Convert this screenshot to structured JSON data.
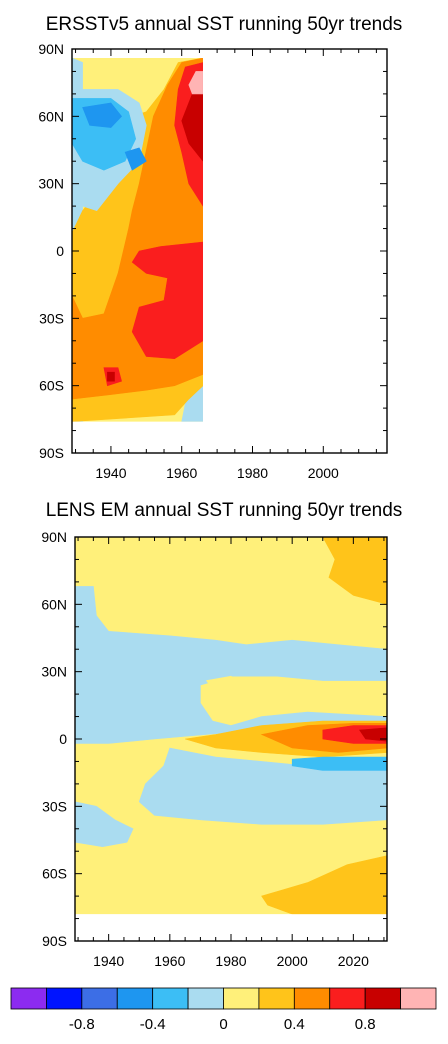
{
  "chart_data": [
    {
      "type": "heatmap",
      "title": "ERSSTv5 annual SST running 50yr trends",
      "xlabel": "",
      "ylabel": "",
      "xlim": [
        1929,
        2018
      ],
      "ylim": [
        -90,
        90
      ],
      "x_ticks": [
        1940,
        1960,
        1980,
        2000
      ],
      "x_tick_labels": [
        "1940",
        "1960",
        "1980",
        "2000"
      ],
      "y_ticks": [
        90,
        60,
        30,
        0,
        -30,
        -60,
        -90
      ],
      "y_tick_labels": [
        "90N",
        "60N",
        "30N",
        "0",
        "30S",
        "60S",
        "90S"
      ],
      "data_extent": {
        "x": [
          1929,
          1966
        ],
        "y": [
          -76,
          86
        ]
      },
      "regions": [
        {
          "color": "#fff07a",
          "points": [
            [
              1929,
              86
            ],
            [
              1966,
              86
            ],
            [
              1966,
              -76
            ],
            [
              1929,
              -76
            ]
          ]
        },
        {
          "color": "#aadcf0",
          "points": [
            [
              1929,
              86
            ],
            [
              1932,
              84
            ],
            [
              1932,
              -76
            ],
            [
              1929,
              -76
            ]
          ]
        },
        {
          "color": "#aadcf0",
          "points": [
            [
              1963,
              -60
            ],
            [
              1966,
              -60
            ],
            [
              1966,
              -76
            ],
            [
              1960,
              -76
            ],
            [
              1961,
              -68
            ]
          ]
        },
        {
          "color": "#ffc41a",
          "points": [
            [
              1940,
              58
            ],
            [
              1946,
              60
            ],
            [
              1950,
              62
            ],
            [
              1955,
              72
            ],
            [
              1959,
              84
            ],
            [
              1966,
              86
            ],
            [
              1966,
              -60
            ],
            [
              1962,
              -66
            ],
            [
              1958,
              -73
            ],
            [
              1929,
              -76
            ],
            [
              1929,
              8
            ],
            [
              1932,
              18
            ],
            [
              1936,
              26
            ],
            [
              1940,
              30
            ],
            [
              1942,
              40
            ]
          ]
        },
        {
          "color": "#ff8c00",
          "points": [
            [
              1952,
              60
            ],
            [
              1956,
              74
            ],
            [
              1960,
              84
            ],
            [
              1966,
              86
            ],
            [
              1966,
              -55
            ],
            [
              1958,
              -60
            ],
            [
              1950,
              -62
            ],
            [
              1940,
              -64
            ],
            [
              1929,
              -66
            ],
            [
              1929,
              -20
            ],
            [
              1932,
              -30
            ],
            [
              1938,
              -28
            ],
            [
              1942,
              -10
            ],
            [
              1945,
              10
            ],
            [
              1946,
              18
            ],
            [
              1948,
              30
            ],
            [
              1950,
              45
            ]
          ]
        },
        {
          "color": "#fa1e1e",
          "points": [
            [
              1959,
              72
            ],
            [
              1961,
              82
            ],
            [
              1966,
              84
            ],
            [
              1966,
              20
            ],
            [
              1962,
              30
            ],
            [
              1960,
              44
            ],
            [
              1958,
              56
            ]
          ]
        },
        {
          "color": "#fa1e1e",
          "points": [
            [
              1948,
              0
            ],
            [
              1954,
              2
            ],
            [
              1960,
              3
            ],
            [
              1966,
              4
            ],
            [
              1966,
              -40
            ],
            [
              1958,
              -48
            ],
            [
              1950,
              -47
            ],
            [
              1946,
              -36
            ],
            [
              1948,
              -25
            ],
            [
              1955,
              -22
            ],
            [
              1956,
              -12
            ],
            [
              1950,
              -10
            ],
            [
              1946,
              -5
            ]
          ]
        },
        {
          "color": "#c80000",
          "points": [
            [
              1960,
              58
            ],
            [
              1963,
              70
            ],
            [
              1966,
              76
            ],
            [
              1966,
              40
            ],
            [
              1962,
              48
            ]
          ]
        },
        {
          "color": "#ffb4b4",
          "points": [
            [
              1962,
              74
            ],
            [
              1964,
              80
            ],
            [
              1966,
              80
            ],
            [
              1966,
              70
            ],
            [
              1963,
              70
            ]
          ]
        },
        {
          "color": "#aadcf0",
          "points": [
            [
              1929,
              72
            ],
            [
              1942,
              72
            ],
            [
              1948,
              66
            ],
            [
              1950,
              56
            ],
            [
              1948,
              40
            ],
            [
              1942,
              30
            ],
            [
              1936,
              18
            ],
            [
              1932,
              20
            ],
            [
              1929,
              28
            ]
          ]
        },
        {
          "color": "#3cbef5",
          "points": [
            [
              1929,
              68
            ],
            [
              1940,
              68
            ],
            [
              1945,
              62
            ],
            [
              1947,
              50
            ],
            [
              1944,
              40
            ],
            [
              1938,
              36
            ],
            [
              1932,
              40
            ],
            [
              1929,
              48
            ]
          ]
        },
        {
          "color": "#1e96f0",
          "points": [
            [
              1932,
              64
            ],
            [
              1940,
              66
            ],
            [
              1943,
              60
            ],
            [
              1940,
              55
            ],
            [
              1934,
              56
            ]
          ]
        },
        {
          "color": "#1e96f0",
          "points": [
            [
              1944,
              44
            ],
            [
              1948,
              46
            ],
            [
              1950,
              40
            ],
            [
              1946,
              36
            ]
          ]
        },
        {
          "color": "#fa1e1e",
          "points": [
            [
              1938,
              -52
            ],
            [
              1942,
              -52
            ],
            [
              1943,
              -58
            ],
            [
              1939,
              -60
            ]
          ]
        },
        {
          "color": "#c80000",
          "points": [
            [
              1939,
              -54
            ],
            [
              1941,
              -54
            ],
            [
              1941,
              -58
            ],
            [
              1939,
              -58
            ]
          ]
        }
      ]
    },
    {
      "type": "heatmap",
      "title": "LENS EM annual SST running 50yr trends",
      "xlabel": "",
      "ylabel": "",
      "xlim": [
        1929,
        2031
      ],
      "ylim": [
        -90,
        90
      ],
      "x_ticks": [
        1940,
        1960,
        1980,
        2000,
        2020
      ],
      "x_tick_labels": [
        "1940",
        "1960",
        "1980",
        "2000",
        "2020"
      ],
      "y_ticks": [
        90,
        60,
        30,
        0,
        -30,
        -60,
        -90
      ],
      "y_tick_labels": [
        "90N",
        "60N",
        "30N",
        "0",
        "30S",
        "60S",
        "90S"
      ],
      "data_extent": {
        "x": [
          1929,
          2031
        ],
        "y": [
          -78,
          90
        ]
      },
      "regions": [
        {
          "color": "#fff07a",
          "points": [
            [
              1929,
              90
            ],
            [
              2031,
              90
            ],
            [
              2031,
              -78
            ],
            [
              1929,
              -78
            ]
          ]
        },
        {
          "color": "#aadcf0",
          "points": [
            [
              1929,
              68
            ],
            [
              1935,
              68
            ],
            [
              1936,
              55
            ],
            [
              1940,
              48
            ],
            [
              1960,
              46
            ],
            [
              1975,
              44
            ],
            [
              1985,
              42
            ],
            [
              2000,
              44
            ],
            [
              2015,
              42
            ],
            [
              2031,
              40
            ],
            [
              2031,
              26
            ],
            [
              2010,
              26
            ],
            [
              1995,
              28
            ],
            [
              1980,
              28
            ],
            [
              1970,
              24
            ],
            [
              1970,
              16
            ],
            [
              1974,
              8
            ],
            [
              1980,
              6
            ],
            [
              1990,
              10
            ],
            [
              2005,
              12
            ],
            [
              2031,
              10
            ],
            [
              2031,
              8
            ],
            [
              2010,
              6
            ],
            [
              1990,
              4
            ],
            [
              1972,
              2
            ],
            [
              1955,
              0
            ],
            [
              1940,
              -2
            ],
            [
              1929,
              -2
            ]
          ]
        },
        {
          "color": "#fff07a",
          "points": [
            [
              1972,
              26
            ],
            [
              1980,
              28
            ],
            [
              1985,
              24
            ],
            [
              1982,
              20
            ],
            [
              1975,
              20
            ]
          ]
        },
        {
          "color": "#aadcf0",
          "points": [
            [
              1960,
              -4
            ],
            [
              1975,
              -8
            ],
            [
              1990,
              -10
            ],
            [
              2005,
              -12
            ],
            [
              2031,
              -12
            ],
            [
              2031,
              -36
            ],
            [
              2010,
              -38
            ],
            [
              1990,
              -38
            ],
            [
              1970,
              -36
            ],
            [
              1955,
              -34
            ],
            [
              1950,
              -28
            ],
            [
              1952,
              -20
            ],
            [
              1958,
              -12
            ]
          ]
        },
        {
          "color": "#aadcf0",
          "points": [
            [
              1929,
              -28
            ],
            [
              1936,
              -30
            ],
            [
              1942,
              -36
            ],
            [
              1948,
              -40
            ],
            [
              1946,
              -46
            ],
            [
              1938,
              -48
            ],
            [
              1929,
              -46
            ]
          ]
        },
        {
          "color": "#ffc41a",
          "points": [
            [
              1965,
              0
            ],
            [
              1975,
              2
            ],
            [
              1990,
              6
            ],
            [
              2010,
              8
            ],
            [
              2031,
              8
            ],
            [
              2031,
              -6
            ],
            [
              2010,
              -8
            ],
            [
              1990,
              -6
            ],
            [
              1975,
              -4
            ]
          ]
        },
        {
          "color": "#ff8c00",
          "points": [
            [
              1990,
              2
            ],
            [
              2005,
              6
            ],
            [
              2020,
              7
            ],
            [
              2031,
              7
            ],
            [
              2031,
              -4
            ],
            [
              2015,
              -6
            ],
            [
              2000,
              -4
            ]
          ]
        },
        {
          "color": "#fa1e1e",
          "points": [
            [
              2010,
              4
            ],
            [
              2020,
              6
            ],
            [
              2031,
              6
            ],
            [
              2031,
              -2
            ],
            [
              2020,
              -2
            ],
            [
              2010,
              0
            ]
          ]
        },
        {
          "color": "#c80000",
          "points": [
            [
              2022,
              4
            ],
            [
              2031,
              5
            ],
            [
              2031,
              -1
            ],
            [
              2024,
              0
            ]
          ]
        },
        {
          "color": "#3cbef5",
          "points": [
            [
              2000,
              -9
            ],
            [
              2010,
              -8
            ],
            [
              2031,
              -8
            ],
            [
              2031,
              -14
            ],
            [
              2010,
              -14
            ],
            [
              2000,
              -12
            ]
          ]
        },
        {
          "color": "#ffc41a",
          "points": [
            [
              2010,
              90
            ],
            [
              2031,
              90
            ],
            [
              2031,
              60
            ],
            [
              2020,
              64
            ],
            [
              2012,
              72
            ],
            [
              2014,
              80
            ]
          ]
        },
        {
          "color": "#ffc41a",
          "points": [
            [
              1990,
              -70
            ],
            [
              2005,
              -64
            ],
            [
              2018,
              -56
            ],
            [
              2031,
              -52
            ],
            [
              2031,
              -78
            ],
            [
              2000,
              -78
            ],
            [
              1992,
              -74
            ]
          ]
        }
      ]
    }
  ],
  "colorbar": {
    "colors": [
      "#8c2bf0",
      "#0014ff",
      "#3c6ee6",
      "#1e96f0",
      "#3cbef5",
      "#aadcf0",
      "#fff07a",
      "#ffc41a",
      "#ff8c00",
      "#fa1e1e",
      "#c80000",
      "#ffb4b4"
    ],
    "labels": [
      "-0.8",
      "-0.4",
      "0",
      "0.4",
      "0.8"
    ],
    "label_boundaries": [
      2,
      4,
      6,
      8,
      10
    ]
  }
}
